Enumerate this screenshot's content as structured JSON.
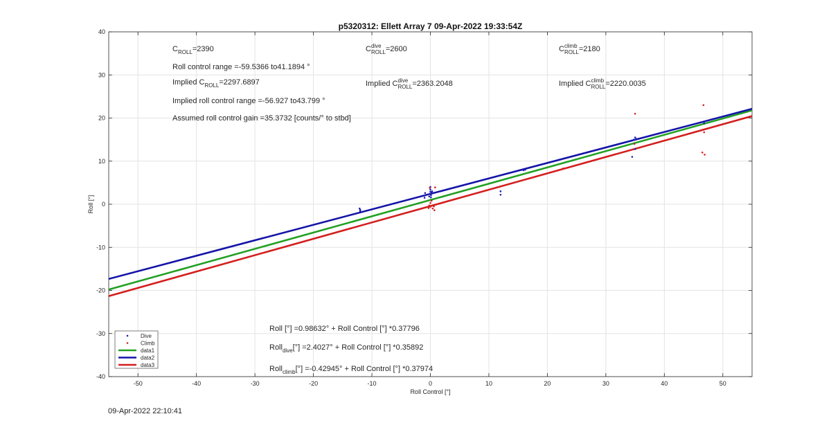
{
  "chart_data": {
    "type": "scatter",
    "title": "p5320312: Ellett Array 7 09-Apr-2022 19:33:54Z",
    "xlabel": "Roll Control [°]",
    "ylabel": "Roll [°]",
    "xlim": [
      -55,
      55
    ],
    "ylim": [
      -40,
      40
    ],
    "xticks": [
      -50,
      -40,
      -30,
      -20,
      -10,
      0,
      10,
      20,
      30,
      40,
      50
    ],
    "yticks": [
      -40,
      -30,
      -20,
      -10,
      0,
      10,
      20,
      30,
      40
    ],
    "grid": true,
    "legend_position": "bottom-left",
    "series": [
      {
        "name": "Dive",
        "kind": "points",
        "color": "#1f1fb4",
        "points": [
          [
            -12.1,
            -1.0
          ],
          [
            -12.0,
            -1.6
          ],
          [
            -12.0,
            -1.3
          ],
          [
            -1.0,
            1.5
          ],
          [
            -1.0,
            2.0
          ],
          [
            -0.9,
            2.6
          ],
          [
            -0.2,
            1.8
          ],
          [
            -0.1,
            2.4
          ],
          [
            0.0,
            2.9
          ],
          [
            0.0,
            3.4
          ],
          [
            0.1,
            1.6
          ],
          [
            0.1,
            2.1
          ],
          [
            0.2,
            2.7
          ],
          [
            0.0,
            4.0
          ],
          [
            0.3,
            3.0
          ],
          [
            12.0,
            2.2
          ],
          [
            12.0,
            3.0
          ],
          [
            15.9,
            7.9
          ],
          [
            16.2,
            8.0
          ],
          [
            34.5,
            11.0
          ],
          [
            34.8,
            15.0
          ],
          [
            35.0,
            15.5
          ],
          [
            35.2,
            15.2
          ],
          [
            35.0,
            12.8
          ],
          [
            46.8,
            18.8
          ]
        ]
      },
      {
        "name": "Climb",
        "kind": "points",
        "color": "#d42020",
        "points": [
          [
            -0.3,
            -0.9
          ],
          [
            -0.2,
            -0.3
          ],
          [
            0.0,
            0.3
          ],
          [
            0.0,
            -0.6
          ],
          [
            0.2,
            0.8
          ],
          [
            0.4,
            -1.0
          ],
          [
            0.6,
            -0.5
          ],
          [
            0.7,
            -1.4
          ],
          [
            0.8,
            3.9
          ],
          [
            -0.1,
            3.8
          ],
          [
            22.7,
            8.3
          ],
          [
            35.0,
            21.0
          ],
          [
            34.9,
            14.0
          ],
          [
            46.7,
            23.0
          ],
          [
            46.6,
            17.3
          ],
          [
            46.8,
            16.7
          ],
          [
            46.5,
            12.0
          ],
          [
            46.9,
            11.5
          ]
        ]
      },
      {
        "name": "data1",
        "kind": "line",
        "color": "#22a022",
        "intercept": 0.98632,
        "slope": 0.37796
      },
      {
        "name": "data2",
        "kind": "line",
        "color": "#1414a8",
        "intercept": 2.4027,
        "slope": 0.35892
      },
      {
        "name": "data3",
        "kind": "line",
        "color": "#d41e1e",
        "intercept": -0.42945,
        "slope": 0.37974
      }
    ],
    "annotations": {
      "c_roll": {
        "prefix": "C",
        "sub": "ROLL",
        "value": "=2390"
      },
      "c_roll_dive": {
        "prefix": "C",
        "sup": "dive",
        "sub": "ROLL",
        "value": " =2600"
      },
      "c_roll_climb": {
        "prefix": "C",
        "sup": "climb",
        "sub": "ROLL",
        "value": " =2180"
      },
      "roll_range": "Roll control range =-59.5366 to41.1894 °",
      "implied_c_roll": {
        "prefix": "Implied C",
        "sub": "ROLL",
        "value": " =2297.6897"
      },
      "implied_c_roll_dive": {
        "prefix": "Implied C",
        "sup": "dive",
        "sub": "ROLL",
        "value": " =2363.2048"
      },
      "implied_c_roll_climb": {
        "prefix": "Implied C",
        "sup": "climb",
        "sub": "ROLL",
        "value": " =2220.0035"
      },
      "implied_range": "Implied roll control range =-56.927 to43.799 °",
      "gain": "Assumed roll control gain =35.3732 [counts/° to stbd]",
      "fit_all": "Roll [°] =0.98632° + Roll Control [°] *0.37796",
      "fit_dive": {
        "prefix": "Roll",
        "sub": "dive",
        "value": " [°] =2.4027° + Roll Control [°] *0.35892"
      },
      "fit_climb": {
        "prefix": "Roll",
        "sub": "climb",
        "value": " [°] =-0.42945° + Roll Control [°] *0.37974"
      }
    }
  },
  "footer": {
    "timestamp": "09-Apr-2022 22:10:41"
  }
}
